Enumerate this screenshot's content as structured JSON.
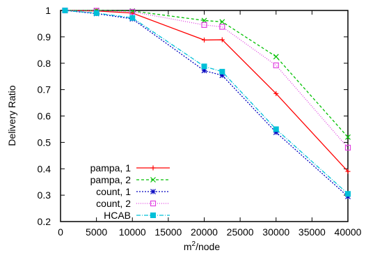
{
  "chart_data": {
    "type": "line",
    "title": "",
    "xlabel": "m",
    "xlabel_sup": "2",
    "xlabel_suffix": "/node",
    "ylabel": "Delivery Ratio",
    "xlim": [
      0,
      40000
    ],
    "ylim": [
      0.2,
      1.0
    ],
    "xticks": [
      0,
      5000,
      10000,
      15000,
      20000,
      25000,
      30000,
      35000,
      40000
    ],
    "yticks": [
      0.2,
      0.3,
      0.4,
      0.5,
      0.6,
      0.7,
      0.8,
      0.9,
      1
    ],
    "xtick_labels": [
      "0",
      "5000",
      "10000",
      "15000",
      "20000",
      "25000",
      "30000",
      "35000",
      "40000"
    ],
    "ytick_labels": [
      "0.2",
      "0.3",
      "0.4",
      "0.5",
      "0.6",
      "0.7",
      "0.8",
      "0.9",
      "1"
    ],
    "grid": false,
    "legend_position": "bottom-left",
    "x": [
      625,
      5000,
      10000,
      20000,
      22500,
      30000,
      40000
    ],
    "series": [
      {
        "name": "pampa, 1",
        "color": "#ff0000",
        "dash": "",
        "marker": "plus",
        "values": [
          1.0,
          0.998,
          0.99,
          0.888,
          0.889,
          0.685,
          0.39
        ]
      },
      {
        "name": "pampa, 2",
        "color": "#00c000",
        "dash": "4,3",
        "marker": "x",
        "values": [
          1.0,
          1.0,
          0.998,
          0.962,
          0.957,
          0.825,
          0.52
        ]
      },
      {
        "name": "count, 1",
        "color": "#0000c0",
        "dash": "2,2",
        "marker": "star",
        "values": [
          1.0,
          0.988,
          0.968,
          0.772,
          0.754,
          0.538,
          0.295
        ]
      },
      {
        "name": "count, 2",
        "color": "#e040e0",
        "dash": "1,2",
        "marker": "square",
        "values": [
          1.0,
          0.999,
          0.995,
          0.945,
          0.938,
          0.792,
          0.48
        ]
      },
      {
        "name": "HCAB",
        "color": "#00c0d8",
        "dash": "6,2,1,2",
        "marker": "filled-square",
        "values": [
          1.0,
          0.99,
          0.972,
          0.788,
          0.768,
          0.55,
          0.305
        ]
      }
    ]
  }
}
